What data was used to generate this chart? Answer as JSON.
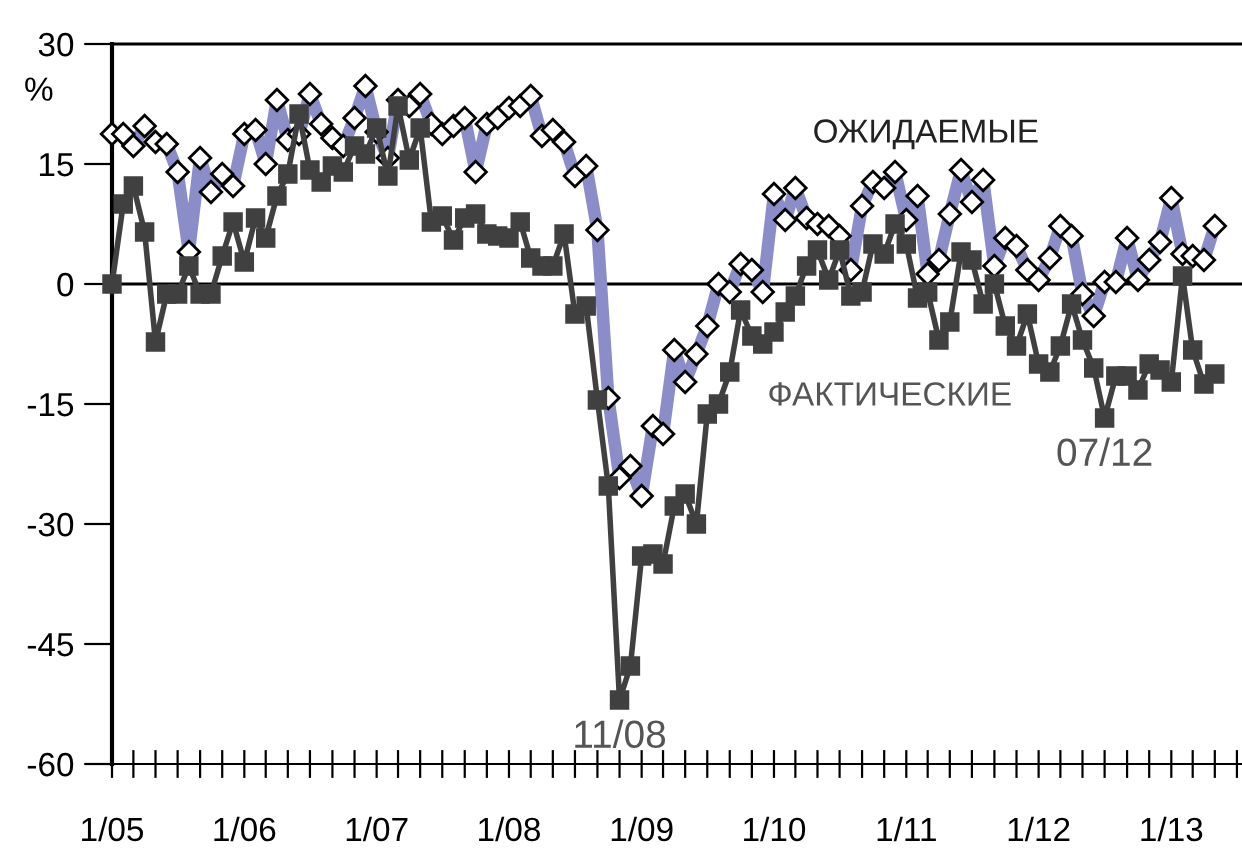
{
  "chart_data": {
    "type": "line",
    "ylabel": "%",
    "x": [
      "2005-01",
      "2005-02",
      "2005-03",
      "2005-04",
      "2005-05",
      "2005-06",
      "2005-07",
      "2005-08",
      "2005-09",
      "2005-10",
      "2005-11",
      "2005-12",
      "2006-01",
      "2006-02",
      "2006-03",
      "2006-04",
      "2006-05",
      "2006-06",
      "2006-07",
      "2006-08",
      "2006-09",
      "2006-10",
      "2006-11",
      "2006-12",
      "2007-01",
      "2007-02",
      "2007-03",
      "2007-04",
      "2007-05",
      "2007-06",
      "2007-07",
      "2007-08",
      "2007-09",
      "2007-10",
      "2007-11",
      "2007-12",
      "2008-01",
      "2008-02",
      "2008-03",
      "2008-04",
      "2008-05",
      "2008-06",
      "2008-07",
      "2008-08",
      "2008-09",
      "2008-10",
      "2008-11",
      "2008-12",
      "2009-01",
      "2009-02",
      "2009-03",
      "2009-04",
      "2009-05",
      "2009-06",
      "2009-07",
      "2009-08",
      "2009-09",
      "2009-10",
      "2009-11",
      "2009-12",
      "2010-01",
      "2010-02",
      "2010-03",
      "2010-04",
      "2010-05",
      "2010-06",
      "2010-07",
      "2010-08",
      "2010-09",
      "2010-10",
      "2010-11",
      "2010-12",
      "2011-01",
      "2011-02",
      "2011-03",
      "2011-04",
      "2011-05",
      "2011-06",
      "2011-07",
      "2011-08",
      "2011-09",
      "2011-10",
      "2011-11",
      "2011-12",
      "2012-01",
      "2012-02",
      "2012-03",
      "2012-04",
      "2012-05",
      "2012-06",
      "2012-07",
      "2012-08",
      "2012-09",
      "2012-10",
      "2012-11",
      "2012-12",
      "2013-01",
      "2013-02",
      "2013-03",
      "2013-04",
      "2013-05"
    ],
    "series": [
      {
        "name": "ОЖИДАЕМЫЕ",
        "color": "#8a8dc8",
        "marker": "diamond",
        "values": [
          18.75,
          18.75,
          17.25,
          19.75,
          17.75,
          17.5,
          14,
          4,
          15.75,
          11.5,
          13.75,
          12.25,
          18.75,
          19.25,
          15,
          23,
          18,
          18.75,
          23.75,
          20,
          18.25,
          17.25,
          20.75,
          24.75,
          19,
          15.75,
          23,
          22.25,
          23.75,
          20,
          18.75,
          19.75,
          20.75,
          14,
          20,
          20.75,
          22,
          22.25,
          23.5,
          18.5,
          19.25,
          17.75,
          13.5,
          14.75,
          6.75,
          -14.25,
          -24.25,
          -22.75,
          -26.5,
          -17.75,
          -18.75,
          -8.25,
          -12.25,
          -8.75,
          -5.25,
          0,
          -1,
          2.5,
          1.75,
          -1,
          11.25,
          8,
          12,
          8.25,
          7.5,
          7.25,
          6,
          1.75,
          9.75,
          12.75,
          12,
          14,
          8,
          11,
          1.25,
          3,
          8.75,
          14.25,
          10.25,
          13,
          2.25,
          5.75,
          4.75,
          1.75,
          0.5,
          3.25,
          7.25,
          6,
          -1.25,
          -4,
          0.25,
          0.25,
          5.75,
          0.5,
          3,
          5.25,
          10.75,
          3.75,
          3.5,
          3,
          7.25
        ]
      },
      {
        "name": "ФАКТИЧЕСКИЕ",
        "color": "#404040",
        "marker": "square",
        "values": [
          0,
          10,
          12.25,
          6.5,
          -7.25,
          -1.25,
          -1.25,
          2.25,
          -1.25,
          -1.25,
          3.5,
          7.75,
          2.75,
          8.25,
          5.75,
          11,
          13.75,
          21.25,
          14.25,
          12.75,
          14.75,
          14,
          17.25,
          16.25,
          19.5,
          13.5,
          22.25,
          15.5,
          19.5,
          7.75,
          8.5,
          5.5,
          8.25,
          8.75,
          6.25,
          6,
          5.75,
          7.75,
          3.25,
          2.25,
          2.25,
          6.25,
          -3.75,
          -2.75,
          -14.5,
          -25.25,
          -52,
          -47.75,
          -34,
          -33.75,
          -35,
          -27.75,
          -26.25,
          -30,
          -16.25,
          -15,
          -11,
          -3.25,
          -6.5,
          -7.5,
          -6,
          -3.5,
          -1.5,
          2.25,
          4.25,
          0.5,
          4.25,
          -1.5,
          -1,
          5,
          3.75,
          7.5,
          5,
          -1.75,
          -1,
          -7,
          -4.75,
          4,
          3,
          -2.5,
          0,
          -5.25,
          -7.75,
          -3.75,
          -10,
          -11,
          -7.75,
          -2.5,
          -7,
          -10.5,
          -16.75,
          -11.5,
          -11.5,
          -13.25,
          -10,
          -10.75,
          -12.25,
          1,
          -8.25,
          -12.5,
          -11.25
        ]
      }
    ],
    "annotations": [
      {
        "text": "11/08",
        "x": "2008-11",
        "y": -52
      },
      {
        "text": "07/12",
        "x": "2012-07",
        "y": -16.75
      }
    ],
    "ref_lines": [
      {
        "axis": "y",
        "value": 0,
        "color": "#000000"
      }
    ],
    "ylim": [
      -60,
      30
    ],
    "yticks": [
      -60,
      -45,
      -30,
      -15,
      0,
      15,
      30
    ],
    "xlim": [
      "2005-01",
      "2013-07-15"
    ],
    "xticks": [
      {
        "value": "2005-01",
        "label": "1/05"
      },
      {
        "value": "2005-03",
        "label": null
      },
      {
        "value": "2005-05",
        "label": null
      },
      {
        "value": "2005-07",
        "label": null
      },
      {
        "value": "2005-09",
        "label": null
      },
      {
        "value": "2005-11",
        "label": null
      },
      {
        "value": "2006-01",
        "label": "1/06"
      },
      {
        "value": "2006-03",
        "label": null
      },
      {
        "value": "2006-05",
        "label": null
      },
      {
        "value": "2006-07",
        "label": null
      },
      {
        "value": "2006-09",
        "label": null
      },
      {
        "value": "2006-11",
        "label": null
      },
      {
        "value": "2007-01",
        "label": "1/07"
      },
      {
        "value": "2007-03",
        "label": null
      },
      {
        "value": "2007-05",
        "label": null
      },
      {
        "value": "2007-07",
        "label": null
      },
      {
        "value": "2007-09",
        "label": null
      },
      {
        "value": "2007-11",
        "label": null
      },
      {
        "value": "2008-01",
        "label": "1/08"
      },
      {
        "value": "2008-03",
        "label": null
      },
      {
        "value": "2008-05",
        "label": null
      },
      {
        "value": "2008-07",
        "label": null
      },
      {
        "value": "2008-09",
        "label": null
      },
      {
        "value": "2008-11",
        "label": null
      },
      {
        "value": "2009-01",
        "label": "1/09"
      },
      {
        "value": "2009-03",
        "label": null
      },
      {
        "value": "2009-05",
        "label": null
      },
      {
        "value": "2009-07",
        "label": null
      },
      {
        "value": "2009-09",
        "label": null
      },
      {
        "value": "2009-11",
        "label": null
      },
      {
        "value": "2010-01",
        "label": "1/10"
      },
      {
        "value": "2010-03",
        "label": null
      },
      {
        "value": "2010-05",
        "label": null
      },
      {
        "value": "2010-07",
        "label": null
      },
      {
        "value": "2010-09",
        "label": null
      },
      {
        "value": "2010-11",
        "label": null
      },
      {
        "value": "2011-01",
        "label": "1/11"
      },
      {
        "value": "2011-03",
        "label": null
      },
      {
        "value": "2011-05",
        "label": null
      },
      {
        "value": "2011-07",
        "label": null
      },
      {
        "value": "2011-09",
        "label": null
      },
      {
        "value": "2011-11",
        "label": null
      },
      {
        "value": "2012-01",
        "label": "1/12"
      },
      {
        "value": "2012-03",
        "label": null
      },
      {
        "value": "2012-05",
        "label": null
      },
      {
        "value": "2012-07",
        "label": null
      },
      {
        "value": "2012-09",
        "label": null
      },
      {
        "value": "2012-11",
        "label": null
      },
      {
        "value": "2013-01",
        "label": "1/13"
      },
      {
        "value": "2013-03",
        "label": null
      },
      {
        "value": "2013-05",
        "label": null
      },
      {
        "value": "2013-07",
        "label": null
      }
    ],
    "grid": false,
    "legend": false
  }
}
